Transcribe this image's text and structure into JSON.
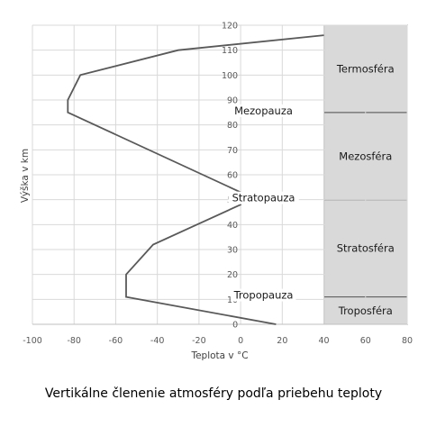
{
  "chart_data": {
    "type": "line",
    "title": "",
    "caption": "Vertikálne členenie atmosféry podľa priebehu teploty",
    "xlabel": "Teplota v °C",
    "ylabel": "Výška v km",
    "xlim": [
      -100,
      80
    ],
    "ylim": [
      0,
      120
    ],
    "x_ticks": [
      "-100",
      "-80",
      "-60",
      "-40",
      "-20",
      "0",
      "20",
      "40",
      "60",
      "80"
    ],
    "y_ticks": [
      "0",
      "10",
      "20",
      "30",
      "40",
      "50",
      "60",
      "70",
      "80",
      "90",
      "100",
      "110",
      "120"
    ],
    "grid": true,
    "series": [
      {
        "points": [
          {
            "x": 17,
            "y": 0
          },
          {
            "x": -55,
            "y": 11
          },
          {
            "x": -55,
            "y": 20
          },
          {
            "x": -42,
            "y": 32
          },
          {
            "x": 0,
            "y": 48
          },
          {
            "x": 0,
            "y": 53
          },
          {
            "x": -83,
            "y": 85
          },
          {
            "x": -83,
            "y": 90
          },
          {
            "x": -77,
            "y": 100
          },
          {
            "x": -30,
            "y": 110
          },
          {
            "x": 40,
            "y": 116
          }
        ],
        "color": "#595959"
      }
    ],
    "layers": [
      {
        "name": "Troposféra",
        "from": 0,
        "to": 11
      },
      {
        "name": "Stratosféra",
        "from": 11,
        "to": 50
      },
      {
        "name": "Mezosféra",
        "from": 50,
        "to": 85
      },
      {
        "name": "Termosféra",
        "from": 85,
        "to": 120
      }
    ],
    "boundary_labels": [
      {
        "text": "Tropopauza",
        "y": 11
      },
      {
        "text": "Stratopauza",
        "y": 50
      },
      {
        "text": "Mezopauza",
        "y": 85
      }
    ],
    "layer_fill": "#d9d9d9",
    "layer_stroke": "#595959"
  }
}
